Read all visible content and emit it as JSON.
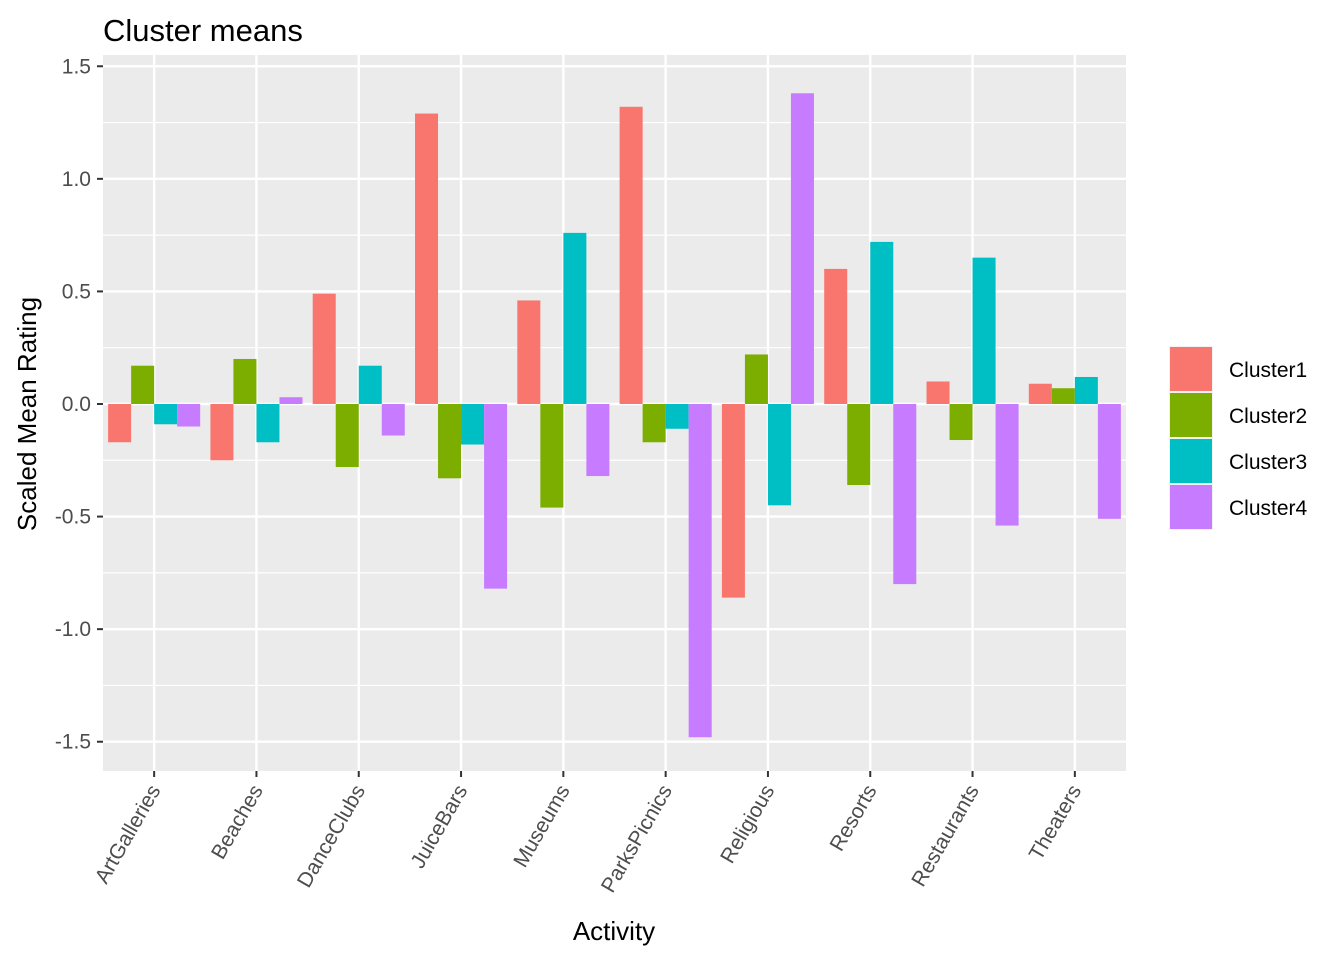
{
  "chart_data": {
    "type": "bar",
    "title": "Cluster means",
    "xlabel": "Activity",
    "ylabel": "Scaled Mean Rating",
    "categories": [
      "ArtGalleries",
      "Beaches",
      "DanceClubs",
      "JuiceBars",
      "Museums",
      "ParksPicnics",
      "Religious",
      "Resorts",
      "Restaurants",
      "Theaters"
    ],
    "series": [
      {
        "name": "Cluster1",
        "color": "#F8766D",
        "values": [
          -0.17,
          -0.25,
          0.49,
          1.29,
          0.46,
          1.32,
          -0.86,
          0.6,
          0.1,
          0.09
        ]
      },
      {
        "name": "Cluster2",
        "color": "#7CAE00",
        "values": [
          0.17,
          0.2,
          -0.28,
          -0.33,
          -0.46,
          -0.17,
          0.22,
          -0.36,
          -0.16,
          0.07
        ]
      },
      {
        "name": "Cluster3",
        "color": "#00BFC4",
        "values": [
          -0.09,
          -0.17,
          0.17,
          -0.18,
          0.76,
          -0.11,
          -0.45,
          0.72,
          0.65,
          0.12
        ]
      },
      {
        "name": "Cluster4",
        "color": "#C77CFF",
        "values": [
          -0.1,
          0.03,
          -0.14,
          -0.82,
          -0.32,
          -1.48,
          1.38,
          -0.8,
          -0.54,
          -0.51
        ]
      }
    ],
    "y_ticks": [
      {
        "value": -1.5,
        "label": "-1.5"
      },
      {
        "value": -1.0,
        "label": "-1.0"
      },
      {
        "value": -0.5,
        "label": "-0.5"
      },
      {
        "value": 0.0,
        "label": "0.0"
      },
      {
        "value": 0.5,
        "label": "0.5"
      },
      {
        "value": 1.0,
        "label": "1.0"
      },
      {
        "value": 1.5,
        "label": "1.5"
      }
    ],
    "ylim": [
      -1.63,
      1.55
    ],
    "grid": true,
    "legend_position": "right",
    "panel_background": "#EBEBEB",
    "grid_color": "#FFFFFF"
  }
}
